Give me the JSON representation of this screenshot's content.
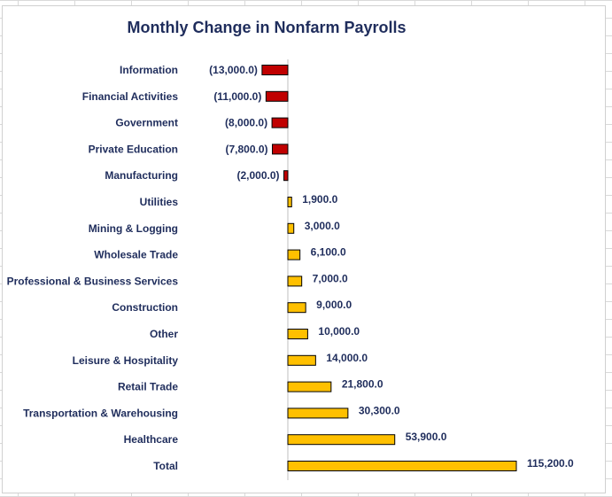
{
  "chart_data": {
    "type": "bar",
    "orientation": "horizontal",
    "title": "Monthly Change in Nonfarm Payrolls",
    "categories": [
      "Information",
      "Financial Activities",
      "Government",
      "Private Education",
      "Manufacturing",
      "Utilities",
      "Mining & Logging",
      "Wholesale Trade",
      "Professional & Business Services",
      "Construction",
      "Other",
      "Leisure & Hospitality",
      "Retail Trade",
      "Transportation & Warehousing",
      "Healthcare",
      "Total"
    ],
    "values": [
      -13000,
      -11000,
      -8000,
      -7800,
      -2000,
      1900,
      3000,
      6100,
      7000,
      9000,
      10000,
      14000,
      21800,
      30300,
      53900,
      115200
    ],
    "value_labels": [
      "(13,000.0)",
      "(11,000.0)",
      "(8,000.0)",
      "(7,800.0)",
      "(2,000.0)",
      "1,900.0",
      "3,000.0",
      "6,100.0",
      "7,000.0",
      "9,000.0",
      "10,000.0",
      "14,000.0",
      "21,800.0",
      "30,300.0",
      "53,900.0",
      "115,200.0"
    ],
    "xlabel": "",
    "ylabel": "",
    "grid": false,
    "legend": "none",
    "colors": {
      "negative": "#c00000",
      "positive": "#ffc000",
      "outline": "#000000"
    }
  }
}
